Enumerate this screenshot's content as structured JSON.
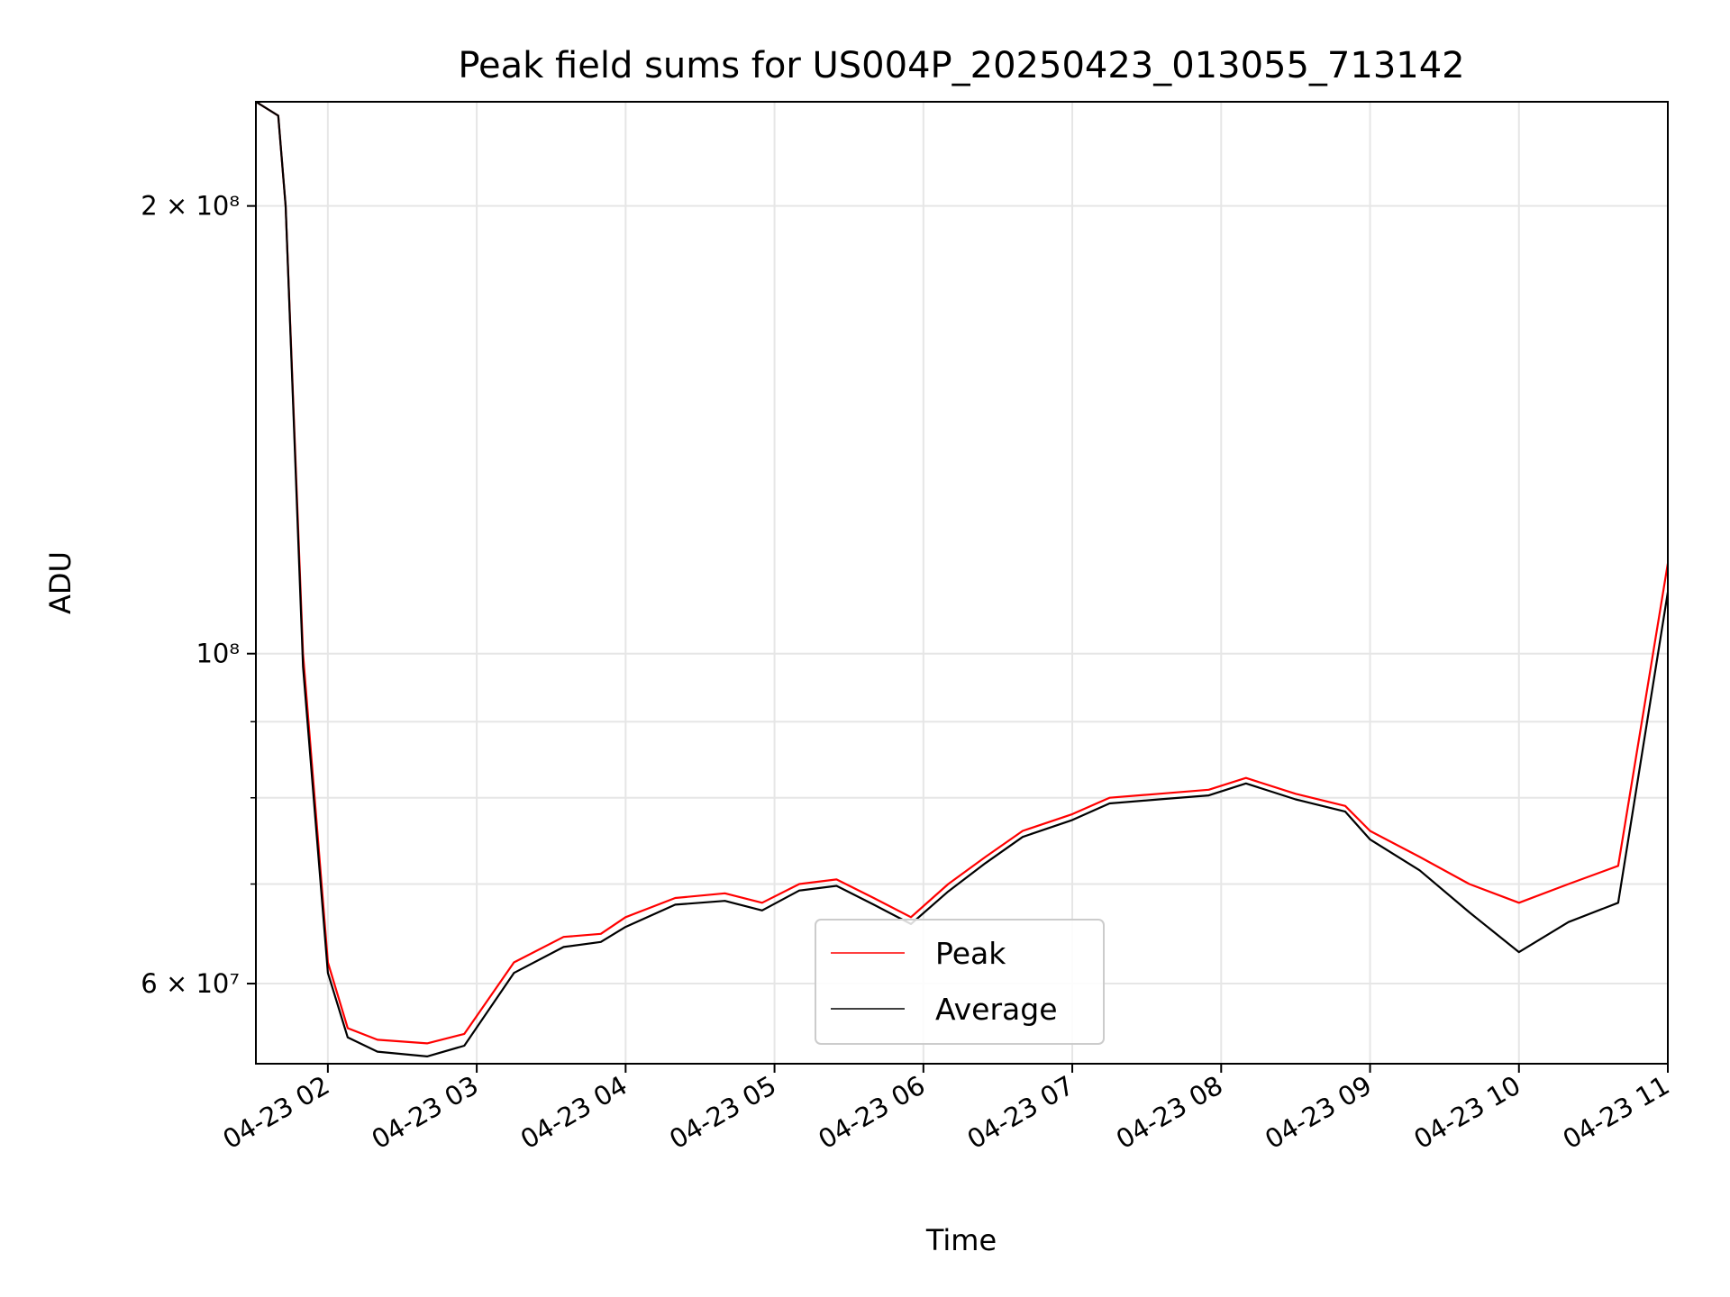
{
  "chart_data": {
    "type": "line",
    "title": "Peak field sums for US004P_20250423_013055_713142",
    "xlabel": "Time",
    "ylabel": "ADU",
    "yscale": "log",
    "ylim": [
      53000000,
      235000000
    ],
    "xlim": [
      "2025-04-23 01:31",
      "2025-04-23 11:00"
    ],
    "grid": true,
    "legend_position": "lower center",
    "x_tick_labels": [
      "04-23 02",
      "04-23 03",
      "04-23 04",
      "04-23 05",
      "04-23 06",
      "04-23 07",
      "04-23 08",
      "04-23 09",
      "04-23 10",
      "04-23 11"
    ],
    "x_ticks": [
      "2025-04-23 02:00",
      "2025-04-23 03:00",
      "2025-04-23 04:00",
      "2025-04-23 05:00",
      "2025-04-23 06:00",
      "2025-04-23 07:00",
      "2025-04-23 08:00",
      "2025-04-23 09:00",
      "2025-04-23 10:00",
      "2025-04-23 11:00"
    ],
    "y_ticks": [
      {
        "value": 60000000,
        "label": "6 × 10⁷"
      },
      {
        "value": 100000000,
        "label": "10⁸"
      },
      {
        "value": 200000000,
        "label": "2 × 10⁸"
      }
    ],
    "y_minor_ticks": [
      70000000,
      80000000,
      90000000
    ],
    "series": [
      {
        "name": "Peak",
        "color": "#ff0000",
        "x": [
          "2025-04-23 01:31",
          "2025-04-23 01:40",
          "2025-04-23 01:43",
          "2025-04-23 01:50",
          "2025-04-23 02:00",
          "2025-04-23 02:08",
          "2025-04-23 02:20",
          "2025-04-23 02:40",
          "2025-04-23 02:55",
          "2025-04-23 03:15",
          "2025-04-23 03:35",
          "2025-04-23 03:50",
          "2025-04-23 04:00",
          "2025-04-23 04:20",
          "2025-04-23 04:40",
          "2025-04-23 04:55",
          "2025-04-23 05:10",
          "2025-04-23 05:25",
          "2025-04-23 05:40",
          "2025-04-23 05:55",
          "2025-04-23 06:10",
          "2025-04-23 06:25",
          "2025-04-23 06:40",
          "2025-04-23 07:00",
          "2025-04-23 07:15",
          "2025-04-23 07:35",
          "2025-04-23 07:55",
          "2025-04-23 08:10",
          "2025-04-23 08:30",
          "2025-04-23 08:50",
          "2025-04-23 09:00",
          "2025-04-23 09:20",
          "2025-04-23 09:40",
          "2025-04-23 10:00",
          "2025-04-23 10:20",
          "2025-04-23 10:40",
          "2025-04-23 11:00"
        ],
        "y": [
          235000000,
          230000000,
          200000000,
          100000000,
          62000000,
          56000000,
          55000000,
          54700000,
          55500000,
          62000000,
          64500000,
          64800000,
          66500000,
          68500000,
          69000000,
          68000000,
          70000000,
          70500000,
          68500000,
          66500000,
          70000000,
          73000000,
          76000000,
          78000000,
          80000000,
          80500000,
          81000000,
          82500000,
          80500000,
          79000000,
          76000000,
          73000000,
          70000000,
          68000000,
          70000000,
          72000000,
          115000000
        ]
      },
      {
        "name": "Average",
        "color": "#000000",
        "x": [
          "2025-04-23 01:31",
          "2025-04-23 01:40",
          "2025-04-23 01:43",
          "2025-04-23 01:50",
          "2025-04-23 02:00",
          "2025-04-23 02:08",
          "2025-04-23 02:20",
          "2025-04-23 02:40",
          "2025-04-23 02:55",
          "2025-04-23 03:15",
          "2025-04-23 03:35",
          "2025-04-23 03:50",
          "2025-04-23 04:00",
          "2025-04-23 04:20",
          "2025-04-23 04:40",
          "2025-04-23 04:55",
          "2025-04-23 05:10",
          "2025-04-23 05:25",
          "2025-04-23 05:40",
          "2025-04-23 05:55",
          "2025-04-23 06:10",
          "2025-04-23 06:25",
          "2025-04-23 06:40",
          "2025-04-23 07:00",
          "2025-04-23 07:15",
          "2025-04-23 07:35",
          "2025-04-23 07:55",
          "2025-04-23 08:10",
          "2025-04-23 08:30",
          "2025-04-23 08:50",
          "2025-04-23 09:00",
          "2025-04-23 09:20",
          "2025-04-23 09:40",
          "2025-04-23 10:00",
          "2025-04-23 10:20",
          "2025-04-23 10:40",
          "2025-04-23 11:00"
        ],
        "y": [
          235000000,
          230000000,
          200000000,
          98000000,
          61000000,
          55200000,
          54000000,
          53600000,
          54500000,
          61000000,
          63500000,
          64000000,
          65500000,
          67800000,
          68200000,
          67200000,
          69300000,
          69800000,
          67800000,
          65800000,
          69200000,
          72300000,
          75300000,
          77300000,
          79300000,
          79800000,
          80300000,
          81800000,
          79800000,
          78300000,
          75000000,
          71500000,
          67000000,
          63000000,
          66000000,
          68000000,
          110000000
        ]
      }
    ]
  }
}
